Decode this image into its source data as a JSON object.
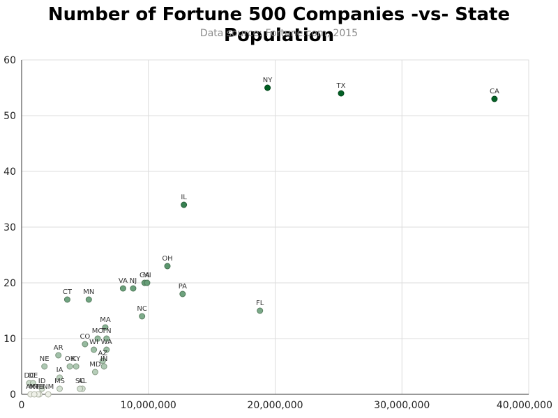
{
  "chart_data": {
    "type": "scatter",
    "title": "Number of Fortune 500 Companies -vs- State Population",
    "subtitle": "Data source: Fortune.com, 2015",
    "xlabel": "",
    "ylabel": "",
    "xlim": [
      0,
      40000000
    ],
    "ylim": [
      0,
      60
    ],
    "x_ticks": [
      0,
      10000000,
      20000000,
      30000000,
      40000000
    ],
    "x_tick_labels": [
      "0",
      "10,000,000",
      "20,000,000",
      "30,000,000",
      "40,000,000"
    ],
    "y_ticks": [
      0,
      10,
      20,
      30,
      40,
      50,
      60
    ],
    "y_tick_labels": [
      "0",
      "10",
      "20",
      "30",
      "40",
      "50",
      "60"
    ],
    "grid": true,
    "points": [
      {
        "label": "CA",
        "x": 37300000,
        "y": 53
      },
      {
        "label": "TX",
        "x": 25200000,
        "y": 54
      },
      {
        "label": "NY",
        "x": 19400000,
        "y": 55
      },
      {
        "label": "IL",
        "x": 12800000,
        "y": 34
      },
      {
        "label": "OH",
        "x": 11500000,
        "y": 23
      },
      {
        "label": "PA",
        "x": 12700000,
        "y": 18
      },
      {
        "label": "FL",
        "x": 18800000,
        "y": 15
      },
      {
        "label": "GA",
        "x": 9700000,
        "y": 20
      },
      {
        "label": "MI",
        "x": 9900000,
        "y": 20
      },
      {
        "label": "VA",
        "x": 8000000,
        "y": 19
      },
      {
        "label": "NJ",
        "x": 8800000,
        "y": 19
      },
      {
        "label": "NC",
        "x": 9500000,
        "y": 14
      },
      {
        "label": "CT",
        "x": 3600000,
        "y": 17
      },
      {
        "label": "MN",
        "x": 5300000,
        "y": 17
      },
      {
        "label": "MA",
        "x": 6600000,
        "y": 12
      },
      {
        "label": "MO",
        "x": 6000000,
        "y": 10
      },
      {
        "label": "TN",
        "x": 6700000,
        "y": 10
      },
      {
        "label": "CO",
        "x": 5000000,
        "y": 9
      },
      {
        "label": "WI",
        "x": 5700000,
        "y": 8
      },
      {
        "label": "WA",
        "x": 6700000,
        "y": 8
      },
      {
        "label": "AZ",
        "x": 6400000,
        "y": 6
      },
      {
        "label": "IN",
        "x": 6500000,
        "y": 5
      },
      {
        "label": "AR",
        "x": 2900000,
        "y": 7
      },
      {
        "label": "KY",
        "x": 4300000,
        "y": 5
      },
      {
        "label": "NE",
        "x": 1800000,
        "y": 5
      },
      {
        "label": "OK",
        "x": 3800000,
        "y": 5
      },
      {
        "label": "MD",
        "x": 5800000,
        "y": 4
      },
      {
        "label": "IA",
        "x": 3000000,
        "y": 3
      },
      {
        "label": "DC",
        "x": 600000,
        "y": 2
      },
      {
        "label": "DE",
        "x": 900000,
        "y": 2
      },
      {
        "label": "ID",
        "x": 1600000,
        "y": 1
      },
      {
        "label": "AL",
        "x": 4800000,
        "y": 1
      },
      {
        "label": "MS",
        "x": 3000000,
        "y": 1
      },
      {
        "label": "SC",
        "x": 4600000,
        "y": 1
      },
      {
        "label": "AK",
        "x": 700000,
        "y": 0
      },
      {
        "label": "HI",
        "x": 1400000,
        "y": 0
      },
      {
        "label": "ME",
        "x": 1300000,
        "y": 0
      },
      {
        "label": "MT",
        "x": 1000000,
        "y": 0
      },
      {
        "label": "NM",
        "x": 2100000,
        "y": 0
      }
    ]
  }
}
